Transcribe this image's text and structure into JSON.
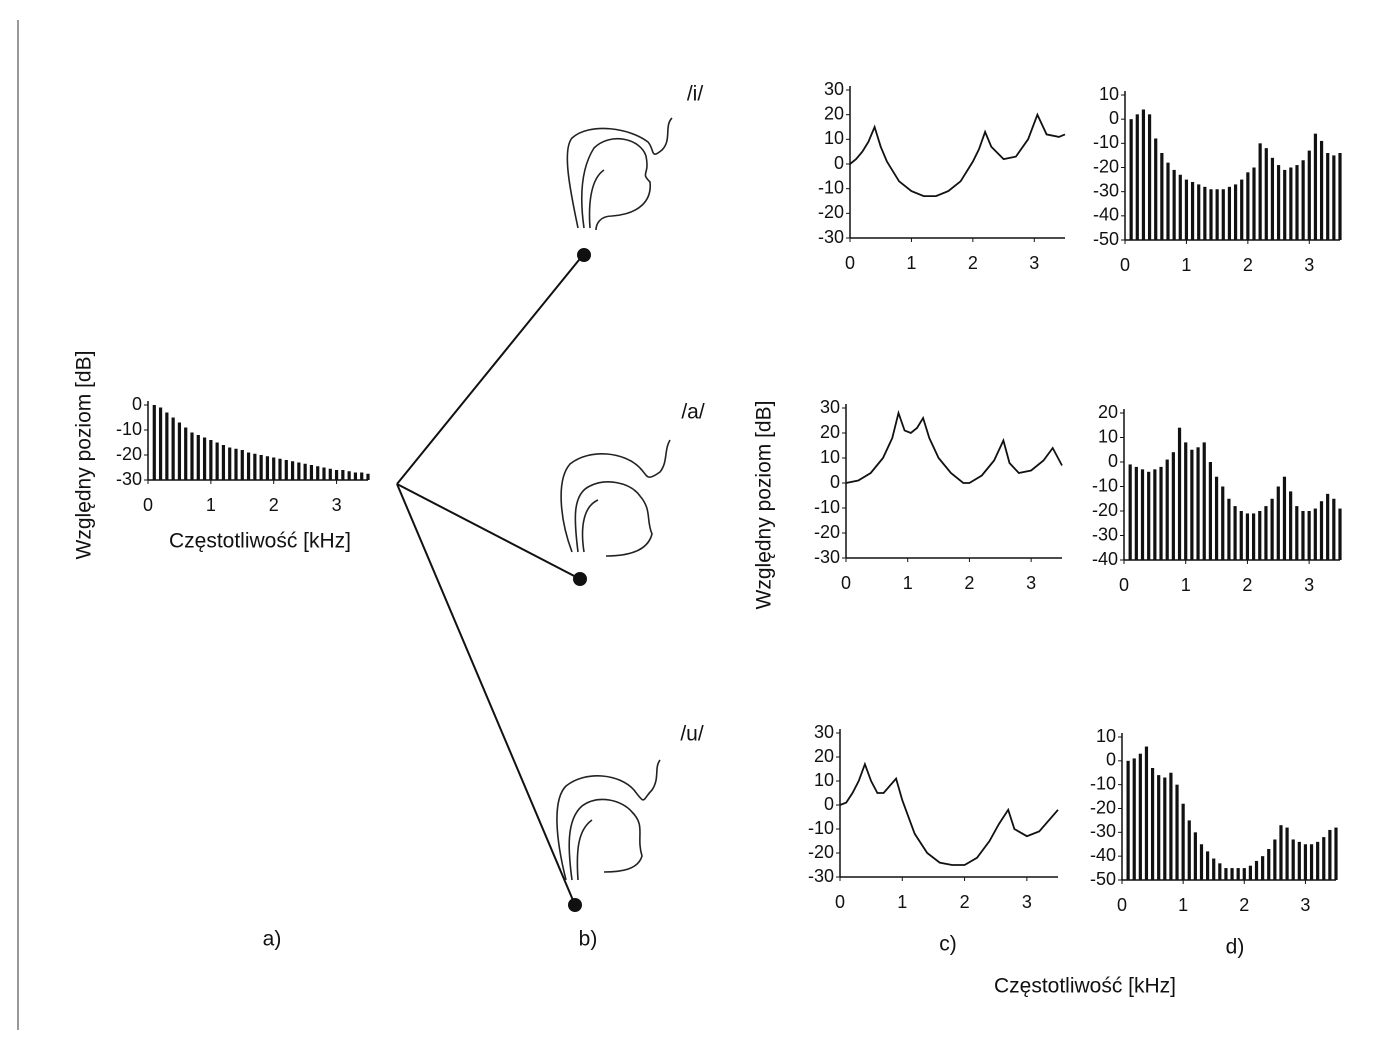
{
  "chart_data": [
    {
      "type": "bar",
      "x_label": "Częstotliwość [kHz]",
      "y_label": "Względny poziom [dB]",
      "caption": "a)",
      "color": "#111111",
      "x": [
        0.1,
        0.2,
        0.3,
        0.4,
        0.5,
        0.6,
        0.7,
        0.8,
        0.9,
        1.0,
        1.1,
        1.2,
        1.3,
        1.4,
        1.5,
        1.6,
        1.7,
        1.8,
        1.9,
        2.0,
        2.1,
        2.2,
        2.3,
        2.4,
        2.5,
        2.6,
        2.7,
        2.8,
        2.9,
        3.0,
        3.1,
        3.2,
        3.3,
        3.4,
        3.5
      ],
      "values": [
        0,
        -1,
        -3,
        -5,
        -7,
        -9,
        -11,
        -12,
        -13,
        -14,
        -15,
        -16,
        -17,
        -17.5,
        -18,
        -19,
        -19.5,
        -20,
        -20.5,
        -21,
        -21.5,
        -22,
        -22.5,
        -23,
        -23.5,
        -24,
        -24.5,
        -25,
        -25.5,
        -26,
        -26,
        -26.5,
        -27,
        -27,
        -27.5
      ],
      "xlim": [
        0,
        3.5
      ],
      "xticks": [
        0,
        1,
        2,
        3
      ],
      "ylim": [
        -30,
        0
      ],
      "yticks": [
        0,
        -10,
        -20,
        -30
      ]
    },
    {
      "type": "line",
      "color": "#111111",
      "x": [
        0,
        0.1,
        0.2,
        0.3,
        0.4,
        0.5,
        0.6,
        0.8,
        1.0,
        1.2,
        1.4,
        1.6,
        1.8,
        2.0,
        2.1,
        2.2,
        2.3,
        2.5,
        2.7,
        2.9,
        3.05,
        3.2,
        3.4,
        3.5
      ],
      "values": [
        0,
        2,
        5,
        9,
        15,
        7,
        1,
        -7,
        -11,
        -13,
        -13,
        -11,
        -7,
        1,
        6,
        13,
        7,
        2,
        3,
        10,
        20,
        12,
        11,
        12
      ],
      "xlim": [
        0,
        3.5
      ],
      "xticks": [
        0,
        1,
        2,
        3
      ],
      "ylim": [
        -30,
        30
      ],
      "yticks": [
        30,
        20,
        10,
        0,
        -10,
        -20,
        -30
      ]
    },
    {
      "type": "bar",
      "color": "#111111",
      "x": [
        0.1,
        0.2,
        0.3,
        0.4,
        0.5,
        0.6,
        0.7,
        0.8,
        0.9,
        1.0,
        1.1,
        1.2,
        1.3,
        1.4,
        1.5,
        1.6,
        1.7,
        1.8,
        1.9,
        2.0,
        2.1,
        2.2,
        2.3,
        2.4,
        2.5,
        2.6,
        2.7,
        2.8,
        2.9,
        3.0,
        3.1,
        3.2,
        3.3,
        3.4,
        3.5
      ],
      "values": [
        0,
        2,
        4,
        2,
        -8,
        -14,
        -18,
        -21,
        -23,
        -25,
        -26,
        -27,
        -28,
        -29,
        -29,
        -29,
        -28,
        -27,
        -25,
        -22,
        -20,
        -10,
        -12,
        -16,
        -19,
        -21,
        -20,
        -19,
        -17,
        -13,
        -6,
        -9,
        -14,
        -15,
        -14
      ],
      "xlim": [
        0,
        3.5
      ],
      "xticks": [
        0,
        1,
        2,
        3
      ],
      "ylim": [
        -50,
        10
      ],
      "yticks": [
        10,
        0,
        -10,
        -20,
        -30,
        -40,
        -50
      ]
    },
    {
      "type": "line",
      "color": "#111111",
      "y_label": "Względny poziom [dB]",
      "x": [
        0,
        0.2,
        0.4,
        0.6,
        0.75,
        0.85,
        0.95,
        1.05,
        1.15,
        1.25,
        1.35,
        1.5,
        1.7,
        1.9,
        2.0,
        2.2,
        2.4,
        2.55,
        2.65,
        2.8,
        3.0,
        3.2,
        3.35,
        3.5
      ],
      "values": [
        0,
        1,
        4,
        10,
        18,
        28,
        21,
        20,
        22,
        26,
        18,
        10,
        4,
        0,
        0,
        3,
        9,
        17,
        8,
        4,
        5,
        9,
        14,
        7
      ],
      "xlim": [
        0,
        3.5
      ],
      "xticks": [
        0,
        1,
        2,
        3
      ],
      "ylim": [
        -30,
        30
      ],
      "yticks": [
        30,
        20,
        10,
        0,
        -10,
        -20,
        -30
      ]
    },
    {
      "type": "bar",
      "color": "#111111",
      "x": [
        0.1,
        0.2,
        0.3,
        0.4,
        0.5,
        0.6,
        0.7,
        0.8,
        0.9,
        1.0,
        1.1,
        1.2,
        1.3,
        1.4,
        1.5,
        1.6,
        1.7,
        1.8,
        1.9,
        2.0,
        2.1,
        2.2,
        2.3,
        2.4,
        2.5,
        2.6,
        2.7,
        2.8,
        2.9,
        3.0,
        3.1,
        3.2,
        3.3,
        3.4,
        3.5
      ],
      "values": [
        -1,
        -2,
        -3,
        -4,
        -3,
        -2,
        1,
        4,
        14,
        8,
        5,
        6,
        8,
        0,
        -6,
        -10,
        -15,
        -18,
        -20,
        -21,
        -21,
        -20,
        -18,
        -15,
        -10,
        -6,
        -12,
        -18,
        -20,
        -20,
        -19,
        -16,
        -13,
        -15,
        -19
      ],
      "xlim": [
        0,
        3.5
      ],
      "xticks": [
        0,
        1,
        2,
        3
      ],
      "ylim": [
        -40,
        20
      ],
      "yticks": [
        20,
        10,
        0,
        -10,
        -20,
        -30,
        -40
      ]
    },
    {
      "type": "line",
      "color": "#111111",
      "caption": "c)",
      "x": [
        0,
        0.1,
        0.2,
        0.3,
        0.4,
        0.5,
        0.6,
        0.7,
        0.8,
        0.9,
        1.0,
        1.2,
        1.4,
        1.6,
        1.8,
        2.0,
        2.2,
        2.4,
        2.55,
        2.7,
        2.8,
        3.0,
        3.2,
        3.5
      ],
      "values": [
        0,
        1,
        5,
        10,
        17,
        10,
        5,
        5,
        8,
        11,
        2,
        -12,
        -20,
        -24,
        -25,
        -25,
        -22,
        -15,
        -8,
        -2,
        -10,
        -13,
        -11,
        -2
      ],
      "xlim": [
        0,
        3.5
      ],
      "xticks": [
        0,
        1,
        2,
        3
      ],
      "ylim": [
        -30,
        30
      ],
      "yticks": [
        30,
        20,
        10,
        0,
        -10,
        -20,
        -30
      ]
    },
    {
      "type": "bar",
      "color": "#111111",
      "caption": "d)",
      "x": [
        0.1,
        0.2,
        0.3,
        0.4,
        0.5,
        0.6,
        0.7,
        0.8,
        0.9,
        1.0,
        1.1,
        1.2,
        1.3,
        1.4,
        1.5,
        1.6,
        1.7,
        1.8,
        1.9,
        2.0,
        2.1,
        2.2,
        2.3,
        2.4,
        2.5,
        2.6,
        2.7,
        2.8,
        2.9,
        3.0,
        3.1,
        3.2,
        3.3,
        3.4,
        3.5
      ],
      "values": [
        0,
        1,
        3,
        6,
        -3,
        -6,
        -7,
        -5,
        -10,
        -18,
        -25,
        -30,
        -35,
        -38,
        -41,
        -43,
        -45,
        -45,
        -45,
        -45,
        -44,
        -42,
        -40,
        -37,
        -33,
        -27,
        -28,
        -33,
        -34,
        -35,
        -35,
        -34,
        -32,
        -29,
        -28
      ],
      "xlim": [
        0,
        3.5
      ],
      "xticks": [
        0,
        1,
        2,
        3
      ],
      "ylim": [
        -50,
        10
      ],
      "yticks": [
        10,
        0,
        -10,
        -20,
        -30,
        -40,
        -50
      ]
    }
  ],
  "diagram": {
    "vowels": [
      "/i/",
      "/a/",
      "/u/"
    ],
    "caption": "b)"
  },
  "figure": {
    "x_label": "Częstotliwość [kHz]"
  }
}
